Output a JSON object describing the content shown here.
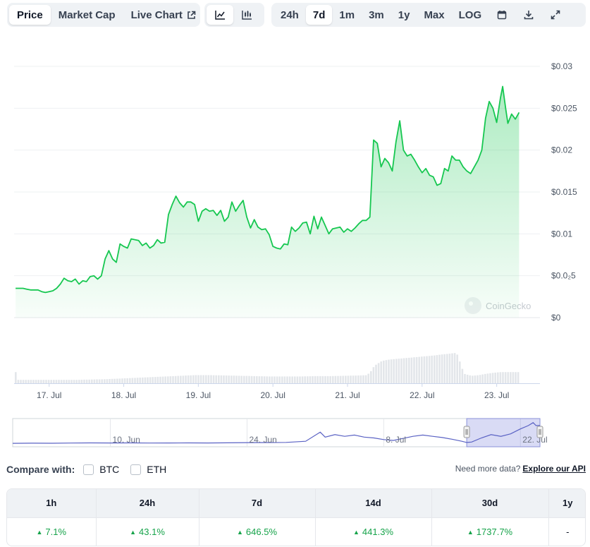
{
  "toolbar": {
    "metric_tabs": [
      {
        "label": "Price",
        "active": true
      },
      {
        "label": "Market Cap",
        "active": false
      },
      {
        "label": "Live Chart",
        "active": false
      }
    ],
    "chart_type_icons": [
      "line-chart-icon",
      "candlestick-chart-icon"
    ],
    "range_tabs": [
      {
        "label": "24h",
        "active": false
      },
      {
        "label": "7d",
        "active": true
      },
      {
        "label": "1m",
        "active": false
      },
      {
        "label": "3m",
        "active": false
      },
      {
        "label": "1y",
        "active": false
      },
      {
        "label": "Max",
        "active": false
      },
      {
        "label": "LOG",
        "active": false
      }
    ],
    "action_icons": [
      "calendar-icon",
      "download-icon",
      "expand-icon"
    ]
  },
  "chart_data": {
    "type": "area",
    "x_tick_labels": [
      "17. Jul",
      "18. Jul",
      "19. Jul",
      "20. Jul",
      "21. Jul",
      "22. Jul",
      "23. Jul"
    ],
    "y_tick_labels": [
      "$0",
      "$0.0₂5",
      "$0.01",
      "$0.015",
      "$0.02",
      "$0.025",
      "$0.03"
    ],
    "y_ticks": [
      0,
      0.005,
      0.01,
      0.015,
      0.02,
      0.025,
      0.03
    ],
    "ylim": [
      0,
      0.03
    ],
    "xlim": [
      16.53,
      23.58
    ],
    "watermark": "CoinGecko",
    "line_color": "#16c750",
    "grid": true,
    "price_series": [
      [
        16.55,
        0.0035
      ],
      [
        16.65,
        0.0035
      ],
      [
        16.7,
        0.0034
      ],
      [
        16.75,
        0.0033
      ],
      [
        16.85,
        0.0033
      ],
      [
        16.9,
        0.0031
      ],
      [
        16.95,
        0.003
      ],
      [
        17.0,
        0.0031
      ],
      [
        17.05,
        0.0032
      ],
      [
        17.1,
        0.0035
      ],
      [
        17.15,
        0.004
      ],
      [
        17.2,
        0.0047
      ],
      [
        17.25,
        0.0044
      ],
      [
        17.3,
        0.0043
      ],
      [
        17.35,
        0.0046
      ],
      [
        17.4,
        0.004
      ],
      [
        17.45,
        0.0044
      ],
      [
        17.5,
        0.0043
      ],
      [
        17.55,
        0.0049
      ],
      [
        17.6,
        0.005
      ],
      [
        17.65,
        0.0046
      ],
      [
        17.7,
        0.005
      ],
      [
        17.75,
        0.007
      ],
      [
        17.8,
        0.008
      ],
      [
        17.85,
        0.007
      ],
      [
        17.9,
        0.0066
      ],
      [
        17.95,
        0.0088
      ],
      [
        18.0,
        0.0085
      ],
      [
        18.05,
        0.0083
      ],
      [
        18.1,
        0.0094
      ],
      [
        18.15,
        0.0093
      ],
      [
        18.2,
        0.0092
      ],
      [
        18.25,
        0.0086
      ],
      [
        18.3,
        0.0089
      ],
      [
        18.35,
        0.0083
      ],
      [
        18.4,
        0.0086
      ],
      [
        18.45,
        0.0093
      ],
      [
        18.5,
        0.0089
      ],
      [
        18.55,
        0.009
      ],
      [
        18.6,
        0.0123
      ],
      [
        18.65,
        0.0135
      ],
      [
        18.7,
        0.0145
      ],
      [
        18.75,
        0.0137
      ],
      [
        18.8,
        0.0132
      ],
      [
        18.85,
        0.0138
      ],
      [
        18.9,
        0.0138
      ],
      [
        18.95,
        0.0135
      ],
      [
        19.0,
        0.0115
      ],
      [
        19.05,
        0.0127
      ],
      [
        19.1,
        0.013
      ],
      [
        19.15,
        0.0127
      ],
      [
        19.2,
        0.0128
      ],
      [
        19.25,
        0.0122
      ],
      [
        19.3,
        0.0128
      ],
      [
        19.35,
        0.0115
      ],
      [
        19.4,
        0.012
      ],
      [
        19.45,
        0.0138
      ],
      [
        19.5,
        0.0127
      ],
      [
        19.55,
        0.0134
      ],
      [
        19.6,
        0.014
      ],
      [
        19.65,
        0.012
      ],
      [
        19.7,
        0.0107
      ],
      [
        19.75,
        0.0117
      ],
      [
        19.8,
        0.0108
      ],
      [
        19.85,
        0.0105
      ],
      [
        19.9,
        0.0106
      ],
      [
        19.95,
        0.0099
      ],
      [
        20.0,
        0.0085
      ],
      [
        20.05,
        0.0083
      ],
      [
        20.1,
        0.0082
      ],
      [
        20.15,
        0.0088
      ],
      [
        20.2,
        0.0087
      ],
      [
        20.25,
        0.0108
      ],
      [
        20.3,
        0.0103
      ],
      [
        20.35,
        0.0107
      ],
      [
        20.4,
        0.0113
      ],
      [
        20.45,
        0.0114
      ],
      [
        20.5,
        0.01
      ],
      [
        20.55,
        0.0121
      ],
      [
        20.6,
        0.0106
      ],
      [
        20.65,
        0.012
      ],
      [
        20.7,
        0.011
      ],
      [
        20.75,
        0.01
      ],
      [
        20.8,
        0.0106
      ],
      [
        20.85,
        0.0107
      ],
      [
        20.9,
        0.0108
      ],
      [
        20.95,
        0.0102
      ],
      [
        21.0,
        0.0106
      ],
      [
        21.05,
        0.0103
      ],
      [
        21.1,
        0.0107
      ],
      [
        21.15,
        0.0112
      ],
      [
        21.2,
        0.0116
      ],
      [
        21.25,
        0.0116
      ],
      [
        21.3,
        0.012
      ],
      [
        21.35,
        0.0212
      ],
      [
        21.4,
        0.0208
      ],
      [
        21.45,
        0.018
      ],
      [
        21.5,
        0.019
      ],
      [
        21.55,
        0.0185
      ],
      [
        21.6,
        0.0175
      ],
      [
        21.65,
        0.021
      ],
      [
        21.7,
        0.0235
      ],
      [
        21.75,
        0.02
      ],
      [
        21.8,
        0.0193
      ],
      [
        21.85,
        0.0195
      ],
      [
        21.9,
        0.0188
      ],
      [
        21.95,
        0.018
      ],
      [
        22.0,
        0.0173
      ],
      [
        22.05,
        0.0178
      ],
      [
        22.1,
        0.017
      ],
      [
        22.15,
        0.0168
      ],
      [
        22.2,
        0.0158
      ],
      [
        22.25,
        0.016
      ],
      [
        22.3,
        0.0178
      ],
      [
        22.35,
        0.0175
      ],
      [
        22.4,
        0.0193
      ],
      [
        22.45,
        0.0188
      ],
      [
        22.5,
        0.0188
      ],
      [
        22.55,
        0.018
      ],
      [
        22.6,
        0.0175
      ],
      [
        22.65,
        0.0172
      ],
      [
        22.7,
        0.018
      ],
      [
        22.75,
        0.0188
      ],
      [
        22.8,
        0.02
      ],
      [
        22.85,
        0.0238
      ],
      [
        22.9,
        0.0258
      ],
      [
        22.95,
        0.025
      ],
      [
        23.0,
        0.0233
      ],
      [
        23.05,
        0.0262
      ],
      [
        23.08,
        0.0276
      ],
      [
        23.12,
        0.025
      ],
      [
        23.15,
        0.0232
      ],
      [
        23.2,
        0.0243
      ],
      [
        23.25,
        0.0237
      ],
      [
        23.3,
        0.0245
      ]
    ],
    "volume_series": [
      [
        16.55,
        0.1
      ],
      [
        16.75,
        0.1
      ],
      [
        16.95,
        0.1
      ],
      [
        17.15,
        0.1
      ],
      [
        17.35,
        0.1
      ],
      [
        17.55,
        0.11
      ],
      [
        17.75,
        0.12
      ],
      [
        17.95,
        0.14
      ],
      [
        18.15,
        0.16
      ],
      [
        18.35,
        0.18
      ],
      [
        18.55,
        0.2
      ],
      [
        18.75,
        0.22
      ],
      [
        18.95,
        0.24
      ],
      [
        19.15,
        0.24
      ],
      [
        19.35,
        0.23
      ],
      [
        19.55,
        0.22
      ],
      [
        19.75,
        0.21
      ],
      [
        19.95,
        0.2
      ],
      [
        20.15,
        0.2
      ],
      [
        20.35,
        0.2
      ],
      [
        20.55,
        0.21
      ],
      [
        20.75,
        0.21
      ],
      [
        20.95,
        0.22
      ],
      [
        21.15,
        0.23
      ],
      [
        21.25,
        0.24
      ],
      [
        21.3,
        0.35
      ],
      [
        21.35,
        0.52
      ],
      [
        21.45,
        0.66
      ],
      [
        21.55,
        0.7
      ],
      [
        21.65,
        0.72
      ],
      [
        21.75,
        0.74
      ],
      [
        21.85,
        0.76
      ],
      [
        21.95,
        0.78
      ],
      [
        22.05,
        0.8
      ],
      [
        22.15,
        0.82
      ],
      [
        22.25,
        0.85
      ],
      [
        22.35,
        0.87
      ],
      [
        22.45,
        0.9
      ],
      [
        22.5,
        0.6
      ],
      [
        22.55,
        0.28
      ],
      [
        22.65,
        0.22
      ],
      [
        22.75,
        0.24
      ],
      [
        22.85,
        0.28
      ],
      [
        22.95,
        0.31
      ],
      [
        23.05,
        0.33
      ],
      [
        23.15,
        0.33
      ],
      [
        23.25,
        0.33
      ],
      [
        23.3,
        0.33
      ]
    ],
    "navigator": {
      "tick_labels": [
        "10. Jun",
        "24. Jun",
        "8. Jul",
        "22. Jul"
      ],
      "tick_values": [
        10,
        24,
        38,
        52
      ],
      "xlim": [
        0,
        54
      ],
      "line_color": "#5a62c4",
      "selected_range": [
        46.5,
        54
      ],
      "series": [
        [
          0,
          0.0025
        ],
        [
          2,
          0.0027
        ],
        [
          4,
          0.0026
        ],
        [
          6,
          0.0028
        ],
        [
          8,
          0.003
        ],
        [
          10,
          0.0029
        ],
        [
          12,
          0.003
        ],
        [
          14,
          0.0028
        ],
        [
          16,
          0.0029
        ],
        [
          18,
          0.003
        ],
        [
          20,
          0.0029
        ],
        [
          22,
          0.0031
        ],
        [
          24,
          0.0033
        ],
        [
          26,
          0.0034
        ],
        [
          28,
          0.0036
        ],
        [
          30,
          0.005
        ],
        [
          31.5,
          0.016
        ],
        [
          32,
          0.01
        ],
        [
          33,
          0.013
        ],
        [
          34,
          0.011
        ],
        [
          35,
          0.0125
        ],
        [
          36,
          0.01
        ],
        [
          37,
          0.009
        ],
        [
          38,
          0.007
        ],
        [
          39,
          0.006
        ],
        [
          40,
          0.0085
        ],
        [
          41,
          0.011
        ],
        [
          42,
          0.0125
        ],
        [
          43,
          0.011
        ],
        [
          44,
          0.0095
        ],
        [
          45,
          0.0075
        ],
        [
          46,
          0.005
        ],
        [
          46.5,
          0.0035
        ],
        [
          47,
          0.004
        ],
        [
          48,
          0.009
        ],
        [
          49,
          0.013
        ],
        [
          50,
          0.011
        ],
        [
          51,
          0.014
        ],
        [
          52,
          0.02
        ],
        [
          52.8,
          0.024
        ],
        [
          53.3,
          0.0276
        ],
        [
          53.6,
          0.024
        ],
        [
          54,
          0.0243
        ]
      ]
    }
  },
  "compare": {
    "label": "Compare with:",
    "options": [
      "BTC",
      "ETH"
    ]
  },
  "api": {
    "prompt": "Need more data?",
    "link": "Explore our API"
  },
  "performance": {
    "headers": [
      "1h",
      "24h",
      "7d",
      "14d",
      "30d",
      "1y"
    ],
    "values": [
      "7.1%",
      "43.1%",
      "646.5%",
      "441.3%",
      "1737.7%",
      "-"
    ],
    "positive": [
      true,
      true,
      true,
      true,
      true,
      false
    ]
  }
}
